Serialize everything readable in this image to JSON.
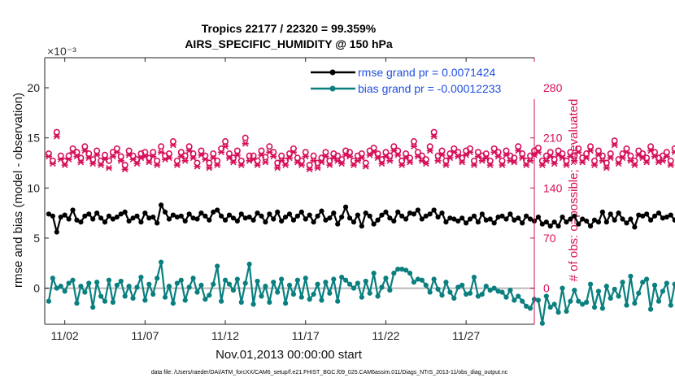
{
  "chart_data": {
    "type": "line",
    "title_line1": "Tropics 22177 / 22320 = 99.359%",
    "title_line2": "AIRS_SPECIFIC_HUMIDITY @ 150 hPa",
    "left_axis": {
      "label": "rmse and bias (model - observation)",
      "exponent_label": "×10⁻³",
      "ticks": [
        "0",
        "5",
        "10",
        "15",
        "20"
      ],
      "tick_values": [
        0,
        5,
        10,
        15,
        20
      ],
      "range": [
        -3.6,
        23
      ]
    },
    "right_axis": {
      "label": "# of obs: o=possible; ×=evaluated",
      "ticks": [
        "0",
        "70",
        "140",
        "210",
        "280"
      ],
      "tick_values": [
        0,
        70,
        140,
        210,
        280
      ],
      "range": [
        -50.4,
        322
      ]
    },
    "x_axis": {
      "label": "Nov.01,2013 00:00:00 start",
      "ticks": [
        "11/02",
        "11/07",
        "11/12",
        "11/17",
        "11/22",
        "11/27"
      ],
      "tick_values": [
        2,
        7,
        12,
        17,
        22,
        27
      ],
      "range": [
        0.75,
        31.25
      ]
    },
    "legend": [
      {
        "name": "rmse grand pr = 0.0071424",
        "color": "#000000"
      },
      {
        "name": "bias grand pr = -0.00012233",
        "color": "#0a7f7f"
      }
    ],
    "legend_position": "top-right",
    "footer": "data file: /Users/raeder/DAI/ATM_forcXX/CAM6_setup/f.e21.FHIST_BGC.f09_025.CAM6assim.011/Diags_NTrS_2013-11/obs_diag_output.nc",
    "colors": {
      "rmse": "#000000",
      "bias": "#0a7f7f",
      "obs": "#d6105a",
      "zero_line": "#b8b8b8"
    },
    "start_day": 1.0,
    "step_days": 0.25,
    "series": [
      {
        "name": "rmse",
        "axis": "left",
        "values": [
          7.4,
          7.2,
          5.6,
          7.1,
          7.3,
          6.9,
          7.8,
          6.8,
          6.6,
          7.2,
          7.4,
          6.9,
          7.5,
          7.0,
          6.6,
          7.2,
          6.9,
          7.1,
          7.4,
          7.6,
          6.7,
          7.0,
          7.2,
          6.6,
          7.5,
          7.0,
          7.1,
          6.5,
          8.3,
          7.6,
          6.9,
          7.3,
          7.1,
          7.2,
          6.7,
          7.4,
          7.0,
          6.9,
          7.5,
          7.2,
          6.8,
          7.6,
          7.8,
          7.2,
          6.8,
          7.3,
          7.0,
          6.7,
          7.4,
          7.0,
          7.1,
          6.8,
          7.5,
          7.2,
          6.6,
          7.4,
          6.9,
          7.6,
          6.7,
          7.1,
          7.4,
          6.8,
          7.2,
          7.6,
          6.9,
          7.3,
          6.6,
          7.2,
          7.7,
          6.8,
          7.0,
          7.5,
          6.4,
          7.1,
          8.1,
          7.0,
          6.6,
          7.3,
          6.2,
          7.5,
          7.2,
          6.4,
          6.8,
          7.3,
          7.6,
          7.0,
          6.7,
          7.6,
          7.2,
          6.9,
          7.5,
          7.4,
          7.8,
          6.9,
          7.2,
          7.4,
          7.8,
          7.1,
          7.5,
          6.6,
          7.0,
          6.9,
          6.7,
          7.0,
          6.5,
          6.9,
          7.2,
          6.6,
          7.4,
          6.8,
          6.9,
          6.5,
          7.1,
          7.2,
          6.9,
          7.4,
          6.8,
          7.0,
          6.5,
          7.2,
          6.9,
          6.7,
          7.1,
          6.4,
          6.6,
          6.2,
          6.6,
          6.2,
          7.1,
          6.6,
          6.9,
          7.2,
          6.4,
          6.9,
          6.7,
          6.2,
          6.8,
          6.6,
          7.6,
          6.6,
          7.4,
          6.8,
          7.5,
          6.9,
          6.5,
          6.9,
          6.1,
          7.3,
          7.2,
          7.4,
          6.8,
          7.2,
          7.5,
          7.0,
          7.1,
          7.3,
          6.8,
          6.9,
          6.8,
          7.1,
          6.7,
          6.9,
          7.1,
          6.8,
          6.9,
          7.0
        ]
      },
      {
        "name": "bias",
        "axis": "left",
        "values": [
          -1.3,
          1.0,
          0.0,
          0.2,
          -0.3,
          0.5,
          0.8,
          -1.5,
          0.2,
          -0.4,
          0.5,
          -1.9,
          0.6,
          -0.8,
          -1.3,
          0.8,
          -1.4,
          0.3,
          0.7,
          -0.8,
          0.2,
          -1.0,
          0.1,
          1.1,
          -1.2,
          0.4,
          -0.6,
          1.0,
          2.6,
          -0.9,
          0.2,
          -1.5,
          0.5,
          0.8,
          -1.2,
          0.1,
          1.0,
          -0.4,
          0.3,
          -1.1,
          -0.7,
          0.4,
          2.2,
          -1.3,
          0.8,
          0.4,
          -0.2,
          0.9,
          -1.4,
          0.5,
          2.4,
          -1.6,
          0.7,
          -0.8,
          0.2,
          -1.4,
          0.6,
          -0.4,
          0.9,
          -1.5,
          0.3,
          -0.6,
          0.8,
          -0.9,
          1.0,
          -1.1,
          -0.6,
          0.4,
          -1.2,
          0.6,
          -0.5,
          0.9,
          -1.3,
          1.1,
          0.8,
          0.4,
          0.0,
          0.5,
          -0.9,
          0.7,
          -0.5,
          1.5,
          -0.8,
          0.1,
          1.0,
          -0.2,
          1.5,
          1.9,
          1.9,
          1.8,
          1.5,
          0.6,
          0.9,
          0.8,
          0.3,
          -0.4,
          0.9,
          -0.1,
          -0.7,
          0.6,
          -0.4,
          -1.0,
          0.1,
          0.3,
          -0.6,
          -0.5,
          1.1,
          -0.8,
          -0.6,
          0.2,
          -0.2,
          0.0,
          -0.3,
          -0.4,
          -0.9,
          -0.2,
          -1.2,
          -0.8,
          -1.3,
          -1.8,
          -2.0,
          -1.1,
          -1.2,
          -3.5,
          -0.8,
          -1.9,
          -1.6,
          -2.4,
          0.0,
          -2.3,
          -1.3,
          -0.2,
          -1.3,
          -1.6,
          -1.4,
          0.4,
          -1.9,
          -0.3,
          -2.0,
          0.2,
          -1.0,
          -0.1,
          -0.8,
          0.6,
          -1.7,
          1.2,
          -1.5,
          -0.5,
          0.6,
          0.9,
          -2.1,
          0.3,
          -1.3,
          -0.3,
          0.5,
          -1.7,
          0.4,
          -0.8,
          0.4,
          -1.3,
          1.8,
          -1.0,
          0.7,
          1.3
        ]
      },
      {
        "name": "obs_possible",
        "axis": "right",
        "values": [
          188,
          178,
          218,
          185,
          178,
          185,
          195,
          190,
          182,
          198,
          188,
          180,
          192,
          178,
          186,
          178,
          190,
          195,
          184,
          172,
          192,
          185,
          180,
          188,
          190,
          182,
          190,
          178,
          198,
          185,
          188,
          205,
          178,
          190,
          185,
          198,
          188,
          175,
          192,
          185,
          175,
          188,
          178,
          195,
          205,
          188,
          182,
          192,
          178,
          210,
          185,
          185,
          178,
          192,
          183,
          198,
          190,
          175,
          185,
          178,
          188,
          195,
          182,
          178,
          190,
          172,
          185,
          175,
          182,
          190,
          178,
          188,
          185,
          180,
          192,
          190,
          178,
          185,
          188,
          175,
          192,
          196,
          188,
          180,
          190,
          185,
          198,
          192,
          178,
          188,
          182,
          205,
          190,
          185,
          180,
          198,
          218,
          185,
          192,
          178,
          188,
          195,
          190,
          182,
          192,
          195,
          178,
          190,
          185,
          188,
          178,
          195,
          190,
          178,
          192,
          185,
          182,
          198,
          188,
          178,
          185,
          192,
          196,
          178,
          185,
          190,
          180,
          192,
          188,
          178,
          190,
          185,
          195,
          182,
          188,
          198,
          178,
          192,
          185,
          175,
          188,
          206,
          180,
          188,
          195,
          185,
          178,
          192,
          188,
          182,
          198,
          190,
          182,
          185,
          190,
          178,
          195,
          185,
          188,
          200
        ]
      },
      {
        "name": "obs_evaluated",
        "axis": "right",
        "values": [
          184,
          174,
          212,
          180,
          172,
          180,
          190,
          184,
          176,
          192,
          182,
          174,
          186,
          172,
          180,
          168,
          184,
          190,
          178,
          166,
          186,
          180,
          174,
          182,
          184,
          176,
          184,
          172,
          190,
          180,
          182,
          200,
          172,
          184,
          178,
          192,
          182,
          170,
          186,
          180,
          168,
          182,
          172,
          190,
          198,
          182,
          176,
          186,
          172,
          202,
          178,
          180,
          172,
          186,
          176,
          190,
          184,
          168,
          178,
          172,
          182,
          190,
          176,
          172,
          184,
          166,
          178,
          168,
          176,
          184,
          172,
          182,
          178,
          174,
          186,
          184,
          172,
          178,
          182,
          170,
          186,
          190,
          182,
          174,
          184,
          178,
          192,
          186,
          172,
          182,
          176,
          198,
          184,
          178,
          174,
          192,
          212,
          178,
          186,
          172,
          182,
          190,
          184,
          176,
          186,
          190,
          172,
          184,
          178,
          182,
          172,
          190,
          184,
          172,
          186,
          178,
          176,
          192,
          182,
          172,
          178,
          186,
          190,
          172,
          178,
          184,
          174,
          186,
          182,
          172,
          184,
          178,
          190,
          176,
          182,
          192,
          172,
          186,
          178,
          168,
          182,
          200,
          174,
          182,
          190,
          178,
          172,
          186,
          182,
          176,
          192,
          184,
          176,
          178,
          184,
          172,
          190,
          178,
          182,
          194
        ]
      }
    ]
  }
}
